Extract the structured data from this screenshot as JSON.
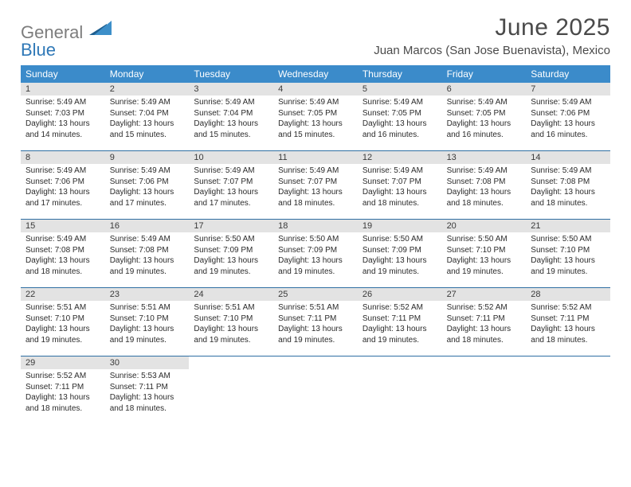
{
  "brand": {
    "part1": "General",
    "part2": "Blue"
  },
  "title": "June 2025",
  "location": "Juan Marcos (San Jose Buenavista), Mexico",
  "colors": {
    "header_bg": "#3b8bca",
    "header_text": "#ffffff",
    "rule": "#2f6fa3",
    "daynum_bg": "#e3e3e3",
    "body_text": "#2b2b2b",
    "title_text": "#4a4a4a",
    "logo_grey": "#7d7d7d",
    "logo_blue": "#2f78b7",
    "logo_mark_dark": "#1d5e8f",
    "logo_mark_light": "#3d8fc9"
  },
  "day_names": [
    "Sunday",
    "Monday",
    "Tuesday",
    "Wednesday",
    "Thursday",
    "Friday",
    "Saturday"
  ],
  "weeks": [
    [
      {
        "n": "1",
        "sr": "5:49 AM",
        "ss": "7:03 PM",
        "dl": "13 hours and 14 minutes."
      },
      {
        "n": "2",
        "sr": "5:49 AM",
        "ss": "7:04 PM",
        "dl": "13 hours and 15 minutes."
      },
      {
        "n": "3",
        "sr": "5:49 AM",
        "ss": "7:04 PM",
        "dl": "13 hours and 15 minutes."
      },
      {
        "n": "4",
        "sr": "5:49 AM",
        "ss": "7:05 PM",
        "dl": "13 hours and 15 minutes."
      },
      {
        "n": "5",
        "sr": "5:49 AM",
        "ss": "7:05 PM",
        "dl": "13 hours and 16 minutes."
      },
      {
        "n": "6",
        "sr": "5:49 AM",
        "ss": "7:05 PM",
        "dl": "13 hours and 16 minutes."
      },
      {
        "n": "7",
        "sr": "5:49 AM",
        "ss": "7:06 PM",
        "dl": "13 hours and 16 minutes."
      }
    ],
    [
      {
        "n": "8",
        "sr": "5:49 AM",
        "ss": "7:06 PM",
        "dl": "13 hours and 17 minutes."
      },
      {
        "n": "9",
        "sr": "5:49 AM",
        "ss": "7:06 PM",
        "dl": "13 hours and 17 minutes."
      },
      {
        "n": "10",
        "sr": "5:49 AM",
        "ss": "7:07 PM",
        "dl": "13 hours and 17 minutes."
      },
      {
        "n": "11",
        "sr": "5:49 AM",
        "ss": "7:07 PM",
        "dl": "13 hours and 18 minutes."
      },
      {
        "n": "12",
        "sr": "5:49 AM",
        "ss": "7:07 PM",
        "dl": "13 hours and 18 minutes."
      },
      {
        "n": "13",
        "sr": "5:49 AM",
        "ss": "7:08 PM",
        "dl": "13 hours and 18 minutes."
      },
      {
        "n": "14",
        "sr": "5:49 AM",
        "ss": "7:08 PM",
        "dl": "13 hours and 18 minutes."
      }
    ],
    [
      {
        "n": "15",
        "sr": "5:49 AM",
        "ss": "7:08 PM",
        "dl": "13 hours and 18 minutes."
      },
      {
        "n": "16",
        "sr": "5:49 AM",
        "ss": "7:08 PM",
        "dl": "13 hours and 19 minutes."
      },
      {
        "n": "17",
        "sr": "5:50 AM",
        "ss": "7:09 PM",
        "dl": "13 hours and 19 minutes."
      },
      {
        "n": "18",
        "sr": "5:50 AM",
        "ss": "7:09 PM",
        "dl": "13 hours and 19 minutes."
      },
      {
        "n": "19",
        "sr": "5:50 AM",
        "ss": "7:09 PM",
        "dl": "13 hours and 19 minutes."
      },
      {
        "n": "20",
        "sr": "5:50 AM",
        "ss": "7:10 PM",
        "dl": "13 hours and 19 minutes."
      },
      {
        "n": "21",
        "sr": "5:50 AM",
        "ss": "7:10 PM",
        "dl": "13 hours and 19 minutes."
      }
    ],
    [
      {
        "n": "22",
        "sr": "5:51 AM",
        "ss": "7:10 PM",
        "dl": "13 hours and 19 minutes."
      },
      {
        "n": "23",
        "sr": "5:51 AM",
        "ss": "7:10 PM",
        "dl": "13 hours and 19 minutes."
      },
      {
        "n": "24",
        "sr": "5:51 AM",
        "ss": "7:10 PM",
        "dl": "13 hours and 19 minutes."
      },
      {
        "n": "25",
        "sr": "5:51 AM",
        "ss": "7:11 PM",
        "dl": "13 hours and 19 minutes."
      },
      {
        "n": "26",
        "sr": "5:52 AM",
        "ss": "7:11 PM",
        "dl": "13 hours and 19 minutes."
      },
      {
        "n": "27",
        "sr": "5:52 AM",
        "ss": "7:11 PM",
        "dl": "13 hours and 18 minutes."
      },
      {
        "n": "28",
        "sr": "5:52 AM",
        "ss": "7:11 PM",
        "dl": "13 hours and 18 minutes."
      }
    ],
    [
      {
        "n": "29",
        "sr": "5:52 AM",
        "ss": "7:11 PM",
        "dl": "13 hours and 18 minutes."
      },
      {
        "n": "30",
        "sr": "5:53 AM",
        "ss": "7:11 PM",
        "dl": "13 hours and 18 minutes."
      },
      null,
      null,
      null,
      null,
      null
    ]
  ],
  "labels": {
    "sunrise": "Sunrise: ",
    "sunset": "Sunset: ",
    "daylight": "Daylight: "
  }
}
